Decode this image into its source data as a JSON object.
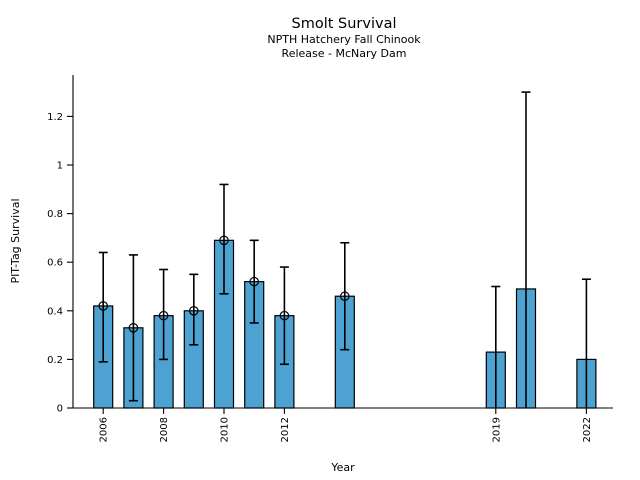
{
  "chart_data": {
    "type": "bar",
    "title": "Smolt Survival",
    "subtitle": [
      "NPTH Hatchery Fall Chinook",
      "Release - McNary Dam"
    ],
    "xlabel": "Year",
    "ylabel": "PIT-Tag Survival",
    "x": [
      2006,
      2007,
      2008,
      2009,
      2010,
      2011,
      2012,
      2014,
      2019,
      2020,
      2022
    ],
    "values": [
      0.42,
      0.33,
      0.38,
      0.4,
      0.69,
      0.52,
      0.38,
      0.46,
      0.23,
      0.49,
      0.2
    ],
    "error_low": [
      0.19,
      0.03,
      0.2,
      0.26,
      0.47,
      0.35,
      0.18,
      0.24,
      0.0,
      0.0,
      0.0
    ],
    "error_high": [
      0.64,
      0.63,
      0.57,
      0.55,
      0.92,
      0.69,
      0.58,
      0.68,
      0.5,
      1.3,
      0.53
    ],
    "point_marker": [
      true,
      true,
      true,
      true,
      true,
      true,
      true,
      true,
      false,
      false,
      false
    ],
    "xticks": [
      2006,
      2008,
      2010,
      2012,
      2019,
      2022
    ],
    "yticks": [
      0,
      0.2,
      0.4,
      0.6,
      0.8,
      1,
      1.2
    ],
    "ytick_labels": [
      "0",
      "0.2",
      "0.4",
      "0.6",
      "0.8",
      "1",
      "1.2"
    ],
    "xlim": [
      2005,
      2022.9
    ],
    "ylim": [
      0,
      1.37
    ],
    "grid": false,
    "legend": null,
    "colors": {
      "bar_fill": "#4DA2D2",
      "bar_edge": "#000000",
      "error_bar": "#000000",
      "axis": "#000000",
      "text": "#000000",
      "background": "#ffffff"
    }
  }
}
